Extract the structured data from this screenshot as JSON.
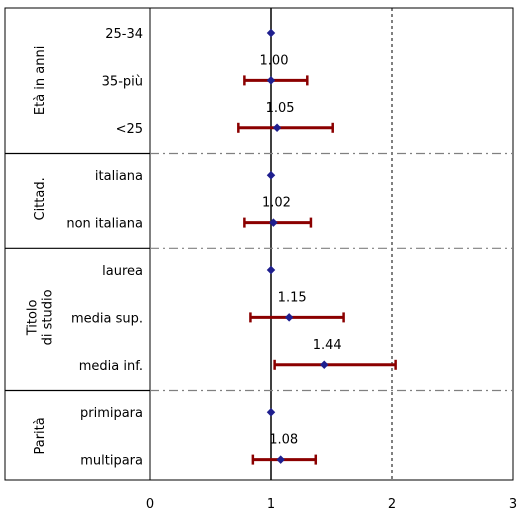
{
  "chart_data": {
    "type": "forest",
    "xlim": [
      0,
      3
    ],
    "x_ticks": [
      "0",
      "1",
      "2",
      "3"
    ],
    "reference_line": 1,
    "dashed_line": 2,
    "groups": [
      {
        "label_lines": [
          "Età in anni"
        ],
        "rows": [
          {
            "label": "25-34",
            "or": 1.0,
            "lo": 1.0,
            "hi": 1.0,
            "value_label": ""
          },
          {
            "label": "35-più",
            "or": 1.0,
            "lo": 0.78,
            "hi": 1.3,
            "value_label": "1.00"
          },
          {
            "label": "<25",
            "or": 1.05,
            "lo": 0.73,
            "hi": 1.51,
            "value_label": "1.05"
          }
        ]
      },
      {
        "label_lines": [
          "Cittad."
        ],
        "rows": [
          {
            "label": "italiana",
            "or": 1.0,
            "lo": 1.0,
            "hi": 1.0,
            "value_label": ""
          },
          {
            "label": "non italiana",
            "or": 1.02,
            "lo": 0.78,
            "hi": 1.33,
            "value_label": "1.02"
          }
        ]
      },
      {
        "label_lines": [
          "Titolo",
          "di studio"
        ],
        "rows": [
          {
            "label": "laurea",
            "or": 1.0,
            "lo": 1.0,
            "hi": 1.0,
            "value_label": ""
          },
          {
            "label": "media sup.",
            "or": 1.15,
            "lo": 0.83,
            "hi": 1.6,
            "value_label": "1.15"
          },
          {
            "label": "media inf.",
            "or": 1.44,
            "lo": 1.03,
            "hi": 2.03,
            "value_label": "1.44"
          }
        ]
      },
      {
        "label_lines": [
          "Parità"
        ],
        "rows": [
          {
            "label": "primipara",
            "or": 1.0,
            "lo": 1.0,
            "hi": 1.0,
            "value_label": ""
          },
          {
            "label": "multipara",
            "or": 1.08,
            "lo": 0.85,
            "hi": 1.37,
            "value_label": "1.08"
          }
        ]
      }
    ],
    "colors": {
      "interval": "#8b0000",
      "point": "#1f1f8f",
      "reference": "#000000",
      "dashed": "#000000",
      "separator": "#808080"
    }
  }
}
